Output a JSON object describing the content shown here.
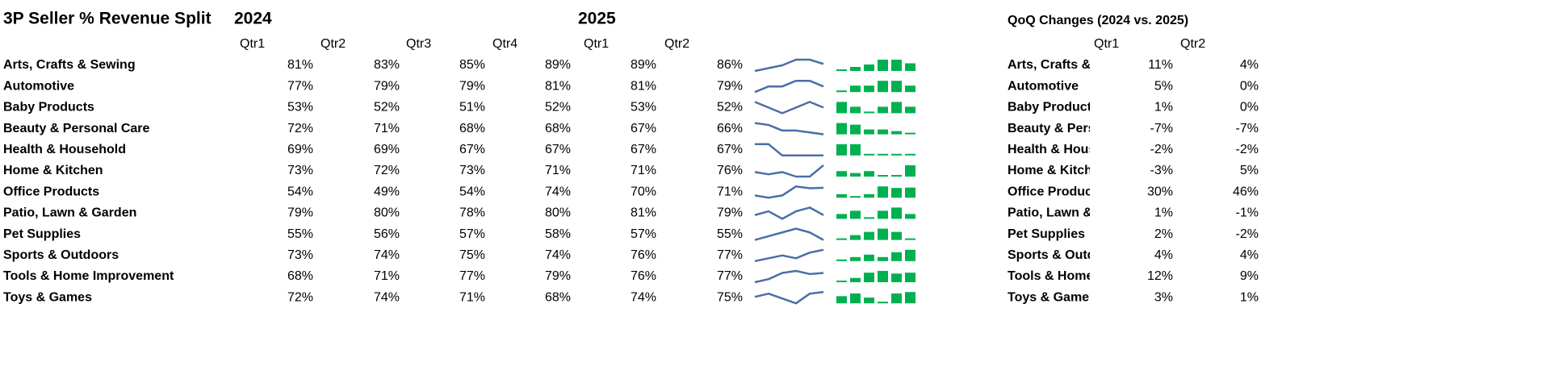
{
  "header": {
    "title": "3P Seller % Revenue Split",
    "years": [
      "2024",
      "2025"
    ],
    "quarters": [
      "Qtr1",
      "Qtr2",
      "Qtr3",
      "Qtr4",
      "Qtr1",
      "Qtr2"
    ]
  },
  "table": {
    "rows": [
      {
        "name": "Arts, Crafts & Sewing",
        "values": [
          {
            "value": 81,
            "label": "81%"
          },
          {
            "value": 83,
            "label": "83%"
          },
          {
            "value": 85,
            "label": "85%"
          },
          {
            "value": 89,
            "label": "89%"
          },
          {
            "value": 89,
            "label": "89%"
          },
          {
            "value": 86,
            "label": "86%"
          }
        ]
      },
      {
        "name": "Automotive",
        "values": [
          {
            "value": 77,
            "label": "77%"
          },
          {
            "value": 79,
            "label": "79%"
          },
          {
            "value": 79,
            "label": "79%"
          },
          {
            "value": 81,
            "label": "81%"
          },
          {
            "value": 81,
            "label": "81%"
          },
          {
            "value": 79,
            "label": "79%"
          }
        ]
      },
      {
        "name": "Baby Products",
        "values": [
          {
            "value": 53,
            "label": "53%"
          },
          {
            "value": 52,
            "label": "52%"
          },
          {
            "value": 51,
            "label": "51%"
          },
          {
            "value": 52,
            "label": "52%"
          },
          {
            "value": 53,
            "label": "53%"
          },
          {
            "value": 52,
            "label": "52%"
          }
        ]
      },
      {
        "name": "Beauty & Personal Care",
        "values": [
          {
            "value": 72,
            "label": "72%"
          },
          {
            "value": 71,
            "label": "71%"
          },
          {
            "value": 68,
            "label": "68%"
          },
          {
            "value": 68,
            "label": "68%"
          },
          {
            "value": 67,
            "label": "67%"
          },
          {
            "value": 66,
            "label": "66%"
          }
        ]
      },
      {
        "name": "Health & Household",
        "values": [
          {
            "value": 69,
            "label": "69%"
          },
          {
            "value": 69,
            "label": "69%"
          },
          {
            "value": 67,
            "label": "67%"
          },
          {
            "value": 67,
            "label": "67%"
          },
          {
            "value": 67,
            "label": "67%"
          },
          {
            "value": 67,
            "label": "67%"
          }
        ]
      },
      {
        "name": "Home & Kitchen",
        "values": [
          {
            "value": 73,
            "label": "73%"
          },
          {
            "value": 72,
            "label": "72%"
          },
          {
            "value": 73,
            "label": "73%"
          },
          {
            "value": 71,
            "label": "71%"
          },
          {
            "value": 71,
            "label": "71%"
          },
          {
            "value": 76,
            "label": "76%"
          }
        ]
      },
      {
        "name": "Office Products",
        "values": [
          {
            "value": 54,
            "label": "54%"
          },
          {
            "value": 49,
            "label": "49%"
          },
          {
            "value": 54,
            "label": "54%"
          },
          {
            "value": 74,
            "label": "74%"
          },
          {
            "value": 70,
            "label": "70%"
          },
          {
            "value": 71,
            "label": "71%"
          }
        ]
      },
      {
        "name": "Patio, Lawn & Garden",
        "values": [
          {
            "value": 79,
            "label": "79%"
          },
          {
            "value": 80,
            "label": "80%"
          },
          {
            "value": 78,
            "label": "78%"
          },
          {
            "value": 80,
            "label": "80%"
          },
          {
            "value": 81,
            "label": "81%"
          },
          {
            "value": 79,
            "label": "79%"
          }
        ]
      },
      {
        "name": "Pet Supplies",
        "values": [
          {
            "value": 55,
            "label": "55%"
          },
          {
            "value": 56,
            "label": "56%"
          },
          {
            "value": 57,
            "label": "57%"
          },
          {
            "value": 58,
            "label": "58%"
          },
          {
            "value": 57,
            "label": "57%"
          },
          {
            "value": 55,
            "label": "55%"
          }
        ]
      },
      {
        "name": "Sports & Outdoors",
        "values": [
          {
            "value": 73,
            "label": "73%"
          },
          {
            "value": 74,
            "label": "74%"
          },
          {
            "value": 75,
            "label": "75%"
          },
          {
            "value": 74,
            "label": "74%"
          },
          {
            "value": 76,
            "label": "76%"
          },
          {
            "value": 77,
            "label": "77%"
          }
        ]
      },
      {
        "name": "Tools & Home Improvement",
        "values": [
          {
            "value": 68,
            "label": "68%"
          },
          {
            "value": 71,
            "label": "71%"
          },
          {
            "value": 77,
            "label": "77%"
          },
          {
            "value": 79,
            "label": "79%"
          },
          {
            "value": 76,
            "label": "76%"
          },
          {
            "value": 77,
            "label": "77%"
          }
        ]
      },
      {
        "name": "Toys & Games",
        "values": [
          {
            "value": 72,
            "label": "72%"
          },
          {
            "value": 74,
            "label": "74%"
          },
          {
            "value": 71,
            "label": "71%"
          },
          {
            "value": 68,
            "label": "68%"
          },
          {
            "value": 74,
            "label": "74%"
          },
          {
            "value": 75,
            "label": "75%"
          }
        ]
      }
    ]
  },
  "qoq": {
    "title": "QoQ Changes (2024 vs. 2025)",
    "quarters": [
      "Qtr1",
      "Qtr2"
    ],
    "rows": [
      [
        "11%",
        "4%"
      ],
      [
        "5%",
        "0%"
      ],
      [
        "1%",
        "0%"
      ],
      [
        "-7%",
        "-7%"
      ],
      [
        "-2%",
        "-2%"
      ],
      [
        "-3%",
        "5%"
      ],
      [
        "30%",
        "46%"
      ],
      [
        "1%",
        "-1%"
      ],
      [
        "2%",
        "-2%"
      ],
      [
        "4%",
        "4%"
      ],
      [
        "12%",
        "9%"
      ],
      [
        "3%",
        "1%"
      ]
    ]
  }
}
